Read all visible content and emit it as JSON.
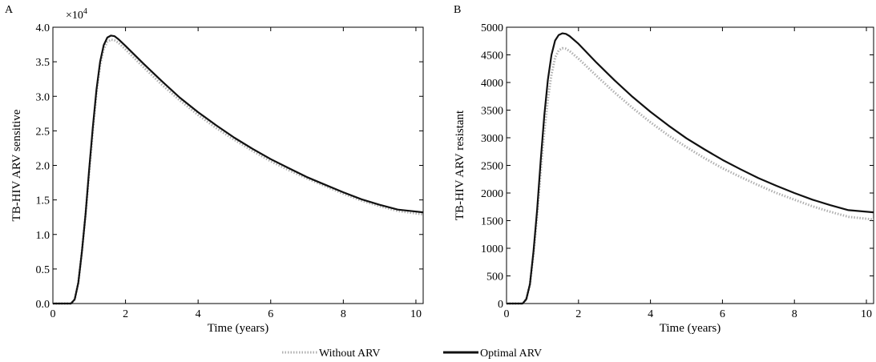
{
  "chart_data": [
    {
      "panel": "A",
      "type": "line",
      "exponent_label": "×10",
      "exponent_power": "4",
      "xlabel": "Time (years)",
      "ylabel": "TB-HIV ARV sensitive",
      "xlim": [
        0,
        10.2
      ],
      "ylim": [
        0,
        40000
      ],
      "xticks": [
        0,
        2,
        4,
        6,
        8,
        10
      ],
      "xtick_labels": [
        "0",
        "2",
        "4",
        "6",
        "8",
        "10"
      ],
      "yticks": [
        0,
        5000,
        10000,
        15000,
        20000,
        25000,
        30000,
        35000,
        40000
      ],
      "ytick_labels": [
        "0.0",
        "0.5",
        "1.0",
        "1.5",
        "2.0",
        "2.5",
        "3.0",
        "3.5",
        "4.0"
      ],
      "grid": false,
      "series": [
        {
          "name": "Without ARV",
          "color": "#b0b0b0",
          "style": "dotted",
          "x": [
            0,
            0.5,
            0.6,
            0.7,
            0.8,
            0.9,
            1.0,
            1.1,
            1.2,
            1.3,
            1.4,
            1.5,
            1.6,
            1.7,
            1.8,
            2.0,
            2.5,
            3.0,
            3.5,
            4.0,
            4.5,
            5.0,
            5.5,
            6.0,
            6.5,
            7.0,
            7.5,
            8.0,
            8.5,
            9.0,
            9.5,
            10.2
          ],
          "y": [
            0,
            0,
            600,
            3000,
            7500,
            13000,
            19000,
            25000,
            30500,
            34500,
            36800,
            37900,
            38200,
            38100,
            37800,
            36800,
            34200,
            31700,
            29400,
            27300,
            25400,
            23700,
            22100,
            20600,
            19300,
            18100,
            17000,
            15900,
            14900,
            14100,
            13400,
            12900
          ]
        },
        {
          "name": "Optimal ARV",
          "color": "#111111",
          "style": "solid",
          "x": [
            0,
            0.5,
            0.6,
            0.7,
            0.8,
            0.9,
            1.0,
            1.1,
            1.2,
            1.3,
            1.4,
            1.5,
            1.6,
            1.7,
            1.8,
            2.0,
            2.5,
            3.0,
            3.5,
            4.0,
            4.5,
            5.0,
            5.5,
            6.0,
            6.5,
            7.0,
            7.5,
            8.0,
            8.5,
            9.0,
            9.5,
            10.2
          ],
          "y": [
            0,
            0,
            600,
            3000,
            7500,
            13000,
            19500,
            25500,
            31000,
            35000,
            37400,
            38500,
            38800,
            38700,
            38300,
            37300,
            34700,
            32200,
            29800,
            27700,
            25800,
            24000,
            22400,
            20900,
            19600,
            18300,
            17200,
            16100,
            15100,
            14300,
            13600,
            13200
          ]
        }
      ]
    },
    {
      "panel": "B",
      "type": "line",
      "xlabel": "Time (years)",
      "ylabel": "TB-HIV ARV resistant",
      "xlim": [
        0,
        10.2
      ],
      "ylim": [
        0,
        5000
      ],
      "xticks": [
        0,
        2,
        4,
        6,
        8,
        10
      ],
      "xtick_labels": [
        "0",
        "2",
        "4",
        "6",
        "8",
        "10"
      ],
      "yticks": [
        0,
        500,
        1000,
        1500,
        2000,
        2500,
        3000,
        3500,
        4000,
        4500,
        5000
      ],
      "ytick_labels": [
        "0",
        "500",
        "1000",
        "1500",
        "2000",
        "2500",
        "3000",
        "3500",
        "4000",
        "4500",
        "5000"
      ],
      "grid": false,
      "series": [
        {
          "name": "Without ARV",
          "color": "#b0b0b0",
          "style": "dotted",
          "x": [
            0,
            0.45,
            0.55,
            0.65,
            0.75,
            0.85,
            0.95,
            1.05,
            1.15,
            1.25,
            1.35,
            1.45,
            1.55,
            1.65,
            1.75,
            2.0,
            2.5,
            3.0,
            3.5,
            4.0,
            4.5,
            5.0,
            5.5,
            6.0,
            6.5,
            7.0,
            7.5,
            8.0,
            8.5,
            9.0,
            9.5,
            10.2
          ],
          "y": [
            0,
            0,
            80,
            350,
            900,
            1600,
            2400,
            3100,
            3700,
            4150,
            4450,
            4580,
            4620,
            4610,
            4570,
            4430,
            4120,
            3820,
            3540,
            3280,
            3040,
            2830,
            2630,
            2450,
            2290,
            2140,
            2000,
            1880,
            1760,
            1660,
            1570,
            1520
          ]
        },
        {
          "name": "Optimal ARV",
          "color": "#111111",
          "style": "solid",
          "x": [
            0,
            0.45,
            0.55,
            0.65,
            0.75,
            0.85,
            0.95,
            1.05,
            1.15,
            1.25,
            1.35,
            1.45,
            1.55,
            1.65,
            1.75,
            2.0,
            2.5,
            3.0,
            3.5,
            4.0,
            4.5,
            5.0,
            5.5,
            6.0,
            6.5,
            7.0,
            7.5,
            8.0,
            8.5,
            9.0,
            9.5,
            10.2
          ],
          "y": [
            0,
            0,
            80,
            350,
            950,
            1700,
            2600,
            3400,
            4050,
            4500,
            4760,
            4860,
            4890,
            4880,
            4840,
            4700,
            4360,
            4040,
            3740,
            3470,
            3220,
            2990,
            2790,
            2600,
            2430,
            2270,
            2130,
            2000,
            1880,
            1780,
            1690,
            1650
          ]
        }
      ]
    }
  ],
  "legend": {
    "items": [
      {
        "label": "Without ARV",
        "color": "#b0b0b0",
        "style": "dotted"
      },
      {
        "label": "Optimal ARV",
        "color": "#111111",
        "style": "solid"
      }
    ]
  }
}
